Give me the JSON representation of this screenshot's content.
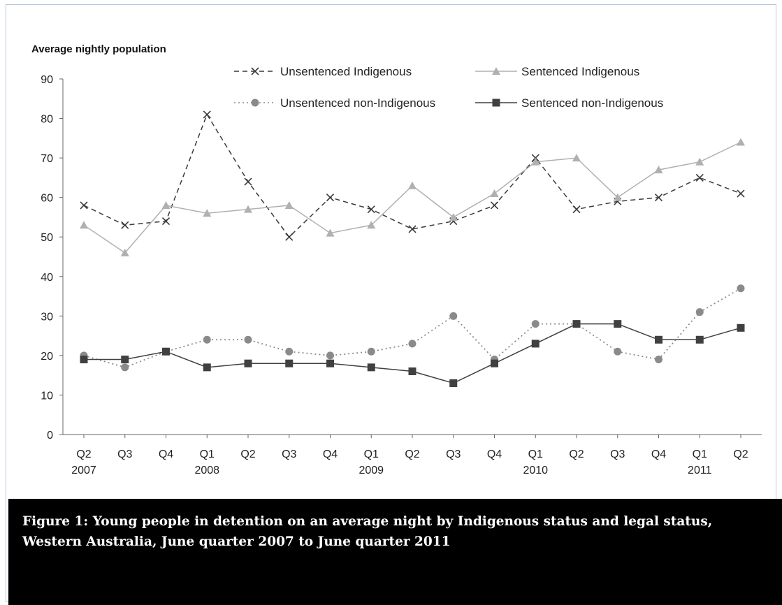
{
  "caption": "Figure 1: Young people in detention on an average night by Indigenous status and legal status, Western Australia, June quarter 2007 to June quarter 2011",
  "colors": {
    "unsentenced_indigenous": "#3a3a3a",
    "sentenced_indigenous": "#b0b0b0",
    "unsentenced_non_indigenous": "#8a8a8a",
    "sentenced_non_indigenous": "#404040"
  },
  "chart_data": {
    "type": "line",
    "ylabel": "Average nightly population",
    "xlabel": "",
    "ylim": [
      0,
      90
    ],
    "yticks": [
      0,
      10,
      20,
      30,
      40,
      50,
      60,
      70,
      80,
      90
    ],
    "categories": [
      "Q2",
      "Q3",
      "Q4",
      "Q1",
      "Q2",
      "Q3",
      "Q4",
      "Q1",
      "Q2",
      "Q3",
      "Q4",
      "Q1",
      "Q2",
      "Q3",
      "Q4",
      "Q1",
      "Q2"
    ],
    "category_years": [
      "2007",
      "",
      "",
      "2008",
      "",
      "",
      "",
      "2009",
      "",
      "",
      "",
      "2010",
      "",
      "",
      "",
      "2011",
      ""
    ],
    "legend_position": "top",
    "grid": false,
    "series": [
      {
        "name": "Unsentenced Indigenous",
        "key": "unsentenced_indigenous",
        "marker": "x",
        "dash": "dashed",
        "values": [
          58,
          53,
          54,
          81,
          64,
          50,
          60,
          57,
          52,
          54,
          58,
          70,
          57,
          59,
          60,
          65,
          61
        ]
      },
      {
        "name": "Sentenced Indigenous",
        "key": "sentenced_indigenous",
        "marker": "triangle",
        "dash": "solid",
        "values": [
          53,
          46,
          58,
          56,
          57,
          58,
          51,
          53,
          63,
          55,
          61,
          69,
          70,
          60,
          67,
          69,
          74
        ]
      },
      {
        "name": "Unsentenced non-Indigenous",
        "key": "unsentenced_non_indigenous",
        "marker": "circle",
        "dash": "dotted",
        "values": [
          20,
          17,
          21,
          24,
          24,
          21,
          20,
          21,
          23,
          30,
          19,
          28,
          28,
          21,
          19,
          31,
          37
        ]
      },
      {
        "name": "Sentenced non-Indigenous",
        "key": "sentenced_non_indigenous",
        "marker": "square",
        "dash": "solid",
        "values": [
          19,
          19,
          21,
          17,
          18,
          18,
          18,
          17,
          16,
          13,
          18,
          23,
          28,
          28,
          24,
          24,
          27
        ]
      }
    ]
  }
}
